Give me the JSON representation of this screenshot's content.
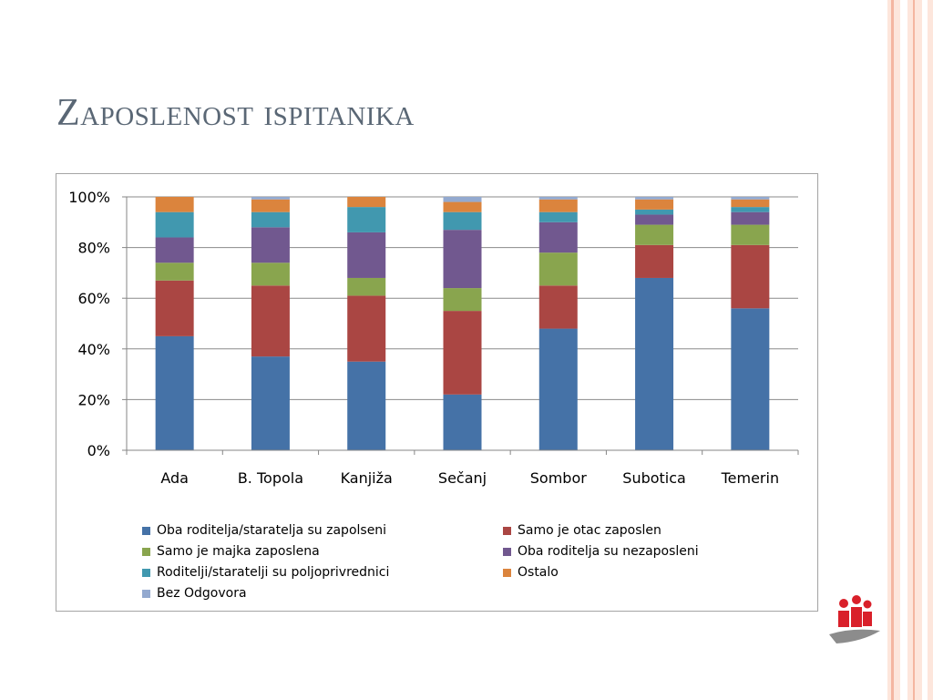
{
  "slide": {
    "title": "Zaposlenost ispitanika"
  },
  "chart_data": {
    "type": "bar",
    "stacked": true,
    "percent": true,
    "categories": [
      "Ada",
      "B. Topola",
      "Kanjiža",
      "Sečanj",
      "Sombor",
      "Subotica",
      "Temerin"
    ],
    "ylim": [
      0,
      100
    ],
    "yticks": [
      "0%",
      "20%",
      "40%",
      "60%",
      "80%",
      "100%"
    ],
    "grid": true,
    "legend_position": "bottom",
    "series": [
      {
        "name": "Oba roditelja/staratelja su zapolseni",
        "color": "#4572a7",
        "values": [
          45,
          37,
          35,
          22,
          48,
          68,
          56
        ]
      },
      {
        "name": "Samo je otac zaposlen",
        "color": "#aa4643",
        "values": [
          22,
          28,
          26,
          33,
          17,
          13,
          25
        ]
      },
      {
        "name": "Samo je majka zaposlena",
        "color": "#89a54e",
        "values": [
          7,
          9,
          7,
          9,
          13,
          8,
          8
        ]
      },
      {
        "name": "Oba roditelja su nezaposleni",
        "color": "#71588f",
        "values": [
          10,
          14,
          18,
          23,
          12,
          4,
          5
        ]
      },
      {
        "name": "Roditelji/staratelji su poljoprivrednici",
        "color": "#4198af",
        "values": [
          10,
          6,
          10,
          7,
          4,
          2,
          2
        ]
      },
      {
        "name": "Ostalo",
        "color": "#db843d",
        "values": [
          6,
          5,
          4,
          4,
          5,
          4,
          3
        ]
      },
      {
        "name": "Bez Odgovora",
        "color": "#93a9cf",
        "values": [
          0,
          1,
          0,
          2,
          1,
          1,
          1
        ]
      }
    ]
  }
}
